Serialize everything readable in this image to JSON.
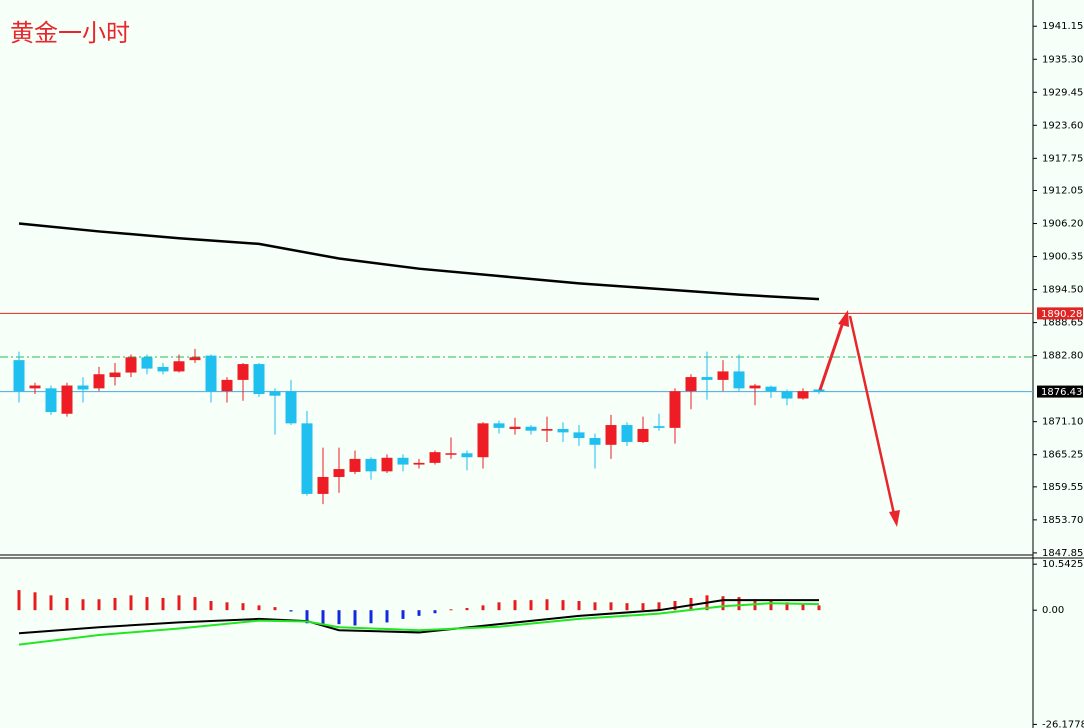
{
  "chart_data": [
    {
      "type": "candlestick",
      "title": "黄金一小时",
      "ylim": [
        1847.3,
        1945.8
      ],
      "yticks": [
        1941.15,
        {
          "value": 1935.3,
          "label": "1935.30"
        },
        1929.45,
        {
          "value": 1923.6,
          "label": "1923.60"
        },
        1917.75,
        1912.05,
        {
          "value": 1906.2,
          "label": "1906.20"
        },
        1900.35,
        {
          "value": 1894.5,
          "label": "1894.50"
        },
        1888.65,
        {
          "value": 1882.8,
          "label": "1882.80"
        },
        {
          "value": 1871.1,
          "label": "1871.10"
        },
        1865.25,
        1859.55,
        {
          "value": 1853.7,
          "label": "1853.70"
        },
        1847.85
      ],
      "up_color": "#ee1c25",
      "down_color": "#1fbff0",
      "candles": {
        "open": [
          1882.0,
          1877,
          1877,
          1872.5,
          1877.5,
          1877,
          1879,
          1879.8,
          1882.5,
          1880.8,
          1880,
          1882,
          1882.8,
          1876.5,
          1878.5,
          1881.3,
          1876.5,
          1876.5,
          1870.8,
          1858.3,
          1861.3,
          1862.2,
          1864.5,
          1862.3,
          1864.7,
          1863.5,
          1863.8,
          1865.3,
          1865.5,
          1864.8,
          1870.8,
          1869.8,
          1870.2,
          1869.5,
          1869.8,
          1869.2,
          1868.2,
          1867,
          1870.5,
          1867.5,
          1870.3,
          1870,
          1876.5,
          1879,
          1878.5,
          1880,
          1877,
          1877.3,
          1876.5,
          1875.2,
          1876.8
        ],
        "high": [
          1883.5,
          1878,
          1877.5,
          1878,
          1879,
          1880.8,
          1881.5,
          1883,
          1883,
          1881.5,
          1883,
          1884,
          1883,
          1879,
          1881.5,
          1881.5,
          1877,
          1878.5,
          1873,
          1866.5,
          1866.5,
          1866,
          1864.8,
          1865.3,
          1865.3,
          1864.5,
          1866,
          1868.3,
          1866,
          1871,
          1871.3,
          1871.8,
          1870.5,
          1872,
          1871,
          1870.5,
          1869,
          1872.3,
          1871,
          1872,
          1872.5,
          1877,
          1879.5,
          1883.5,
          1882,
          1883,
          1877.8,
          1877.5,
          1876.8,
          1877,
          1877
        ],
        "low": [
          1874.5,
          1876,
          1872.3,
          1872,
          1874.5,
          1876.5,
          1877.5,
          1879,
          1879.5,
          1879.5,
          1879.8,
          1881.5,
          1874.5,
          1874.5,
          1874.8,
          1875.5,
          1868.8,
          1870.5,
          1858,
          1856.5,
          1858.5,
          1861.8,
          1860.8,
          1862,
          1862.3,
          1862.8,
          1863.5,
          1864.5,
          1862.5,
          1862.8,
          1869,
          1868.8,
          1868.8,
          1867.5,
          1867.5,
          1866.8,
          1862.8,
          1864.5,
          1866.8,
          1867.3,
          1869.5,
          1867.2,
          1873.3,
          1875,
          1876.5,
          1876.5,
          1874,
          1875.3,
          1874,
          1875,
          1876
        ],
        "close": [
          1876.5,
          1877.5,
          1872.8,
          1877.5,
          1876.8,
          1879.5,
          1879.8,
          1882.5,
          1880.5,
          1880,
          1881.8,
          1882.5,
          1876.5,
          1878.5,
          1881.3,
          1876,
          1875.7,
          1870.8,
          1858.3,
          1861.3,
          1862.7,
          1864.5,
          1862.3,
          1864.7,
          1863.5,
          1863.8,
          1865.7,
          1865.5,
          1864.8,
          1870.8,
          1870,
          1870.2,
          1869.5,
          1869.8,
          1869.2,
          1868.2,
          1867,
          1870.5,
          1867.5,
          1869.8,
          1870,
          1876.5,
          1879,
          1878.5,
          1880,
          1877,
          1877.5,
          1876.5,
          1875.2,
          1876.5,
          1876.43
        ]
      },
      "ma": {
        "color": "#000000",
        "x": [
          0,
          5,
          10,
          15,
          20,
          25,
          30,
          35,
          40,
          45,
          50
        ],
        "values": [
          1906.2,
          1904.8,
          1903.6,
          1902.6,
          1900.0,
          1898.2,
          1896.9,
          1895.6,
          1894.6,
          1893.6,
          1892.8
        ]
      },
      "levels": [
        {
          "value": 1890.28,
          "color": "#e02424",
          "style": "solid",
          "label_box": "#e02424"
        },
        {
          "value": 1882.55,
          "color": "#2fb85a",
          "style": "dashdot"
        },
        {
          "value": 1876.43,
          "color": "#4aa8e0",
          "style": "solid",
          "label_box": "#000000"
        }
      ]
    },
    {
      "type": "macd",
      "ylim": [
        -27,
        11.5
      ],
      "yticks": [
        10.5425,
        {
          "value": 0,
          "label": "0.00"
        },
        -26.1778
      ],
      "pos_color": "#e81c1c",
      "neg_color": "#1428e0",
      "histogram": [
        4.6,
        4.1,
        3.4,
        2.8,
        2.5,
        2.5,
        2.8,
        3.4,
        3.0,
        2.8,
        3.4,
        3.0,
        2.1,
        1.8,
        1.6,
        1.1,
        0.7,
        -0.3,
        -3,
        -3.5,
        -3.2,
        -3.5,
        -3,
        -2.8,
        -2,
        -1.3,
        -0.7,
        0.2,
        0.5,
        1.1,
        1.8,
        2.3,
        2.3,
        2.5,
        2.3,
        2.1,
        1.8,
        1.8,
        1.6,
        1.6,
        1.8,
        2.1,
        2.8,
        3.4,
        3.2,
        3.0,
        2.5,
        2.3,
        1.8,
        1.6,
        1.1
      ],
      "series": [
        {
          "color": "#000000",
          "x": [
            0,
            5,
            10,
            15,
            18,
            20,
            25,
            30,
            35,
            40,
            44,
            47,
            50
          ],
          "values": [
            -5.3,
            -3.9,
            -2.8,
            -2.0,
            -2.5,
            -4.6,
            -5.1,
            -3.2,
            -1.3,
            0.0,
            2.3,
            2.3,
            2.3
          ]
        },
        {
          "color": "#22e622",
          "x": [
            0,
            5,
            10,
            15,
            18,
            20,
            25,
            30,
            35,
            40,
            44,
            47,
            50
          ],
          "values": [
            -7.9,
            -5.7,
            -4.2,
            -2.4,
            -2.6,
            -3.9,
            -4.6,
            -3.8,
            -2.0,
            -0.8,
            0.9,
            1.6,
            1.4
          ]
        }
      ]
    }
  ]
}
